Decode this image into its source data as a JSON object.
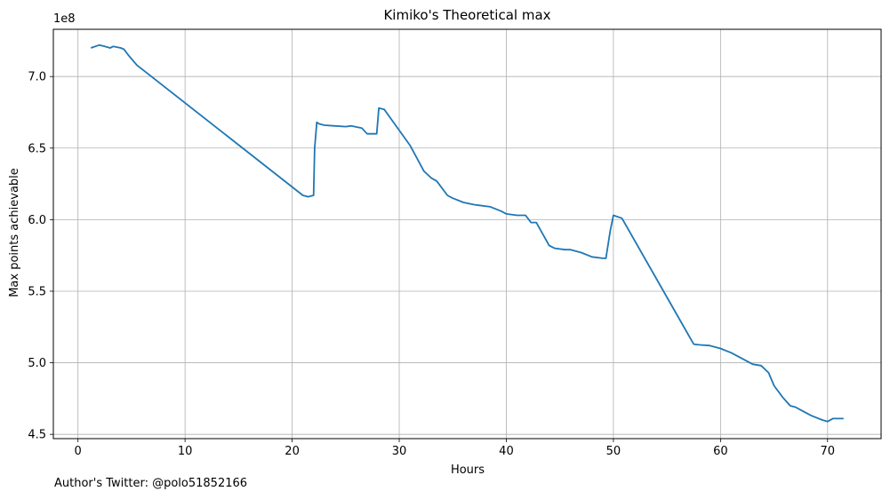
{
  "chart_data": {
    "type": "line",
    "title": "Kimiko's Theoretical max",
    "xlabel": "Hours",
    "ylabel": "Max points achievable",
    "y_multiplier_label": "1e8",
    "xlim": [
      -2.3,
      75
    ],
    "ylim": [
      4.47,
      7.33
    ],
    "x_ticks": [
      0,
      10,
      20,
      30,
      40,
      50,
      60,
      70
    ],
    "y_ticks": [
      4.5,
      5.0,
      5.5,
      6.0,
      6.5,
      7.0
    ],
    "x_tick_labels": [
      "0",
      "10",
      "20",
      "30",
      "40",
      "50",
      "60",
      "70"
    ],
    "y_tick_labels": [
      "4.5",
      "5.0",
      "5.5",
      "6.0",
      "6.5",
      "7.0"
    ],
    "grid": true,
    "line_color": "#1f77b4",
    "series": [
      {
        "name": "",
        "x": [
          1.2,
          2.0,
          2.5,
          3.0,
          3.3,
          4.0,
          4.3,
          4.7,
          5.5,
          21.0,
          21.5,
          22.0,
          22.1,
          22.3,
          22.5,
          23.0,
          24.0,
          25.0,
          25.5,
          26.5,
          27.0,
          27.9,
          28.1,
          28.6,
          31.0,
          32.3,
          33.0,
          33.5,
          34.5,
          35.0,
          36.0,
          37.0,
          37.5,
          38.5,
          39.5,
          40.0,
          41.0,
          41.8,
          42.3,
          42.8,
          44.0,
          44.5,
          45.5,
          46.0,
          47.0,
          48.0,
          49.0,
          49.3,
          49.7,
          50.0,
          50.8,
          57.5,
          58.0,
          59.0,
          60.0,
          61.0,
          62.0,
          63.0,
          63.8,
          64.5,
          65.0,
          65.8,
          66.5,
          67.0,
          67.5,
          68.5,
          69.5,
          70.0,
          70.5,
          71.0,
          71.5
        ],
        "y": [
          7.2,
          7.22,
          7.21,
          7.2,
          7.21,
          7.2,
          7.19,
          7.15,
          7.08,
          6.17,
          6.16,
          6.17,
          6.5,
          6.68,
          6.67,
          6.66,
          6.655,
          6.65,
          6.655,
          6.64,
          6.6,
          6.6,
          6.78,
          6.77,
          6.52,
          6.34,
          6.29,
          6.27,
          6.17,
          6.15,
          6.12,
          6.105,
          6.1,
          6.09,
          6.06,
          6.04,
          6.03,
          6.03,
          5.98,
          5.98,
          5.82,
          5.8,
          5.79,
          5.79,
          5.77,
          5.74,
          5.73,
          5.73,
          5.92,
          6.03,
          6.01,
          5.13,
          5.125,
          5.12,
          5.1,
          5.07,
          5.03,
          4.99,
          4.98,
          4.93,
          4.84,
          4.76,
          4.7,
          4.69,
          4.67,
          4.63,
          4.6,
          4.59,
          4.61,
          4.61,
          4.61
        ]
      }
    ]
  },
  "footer": {
    "author_text": "Author's Twitter: @polo51852166"
  }
}
